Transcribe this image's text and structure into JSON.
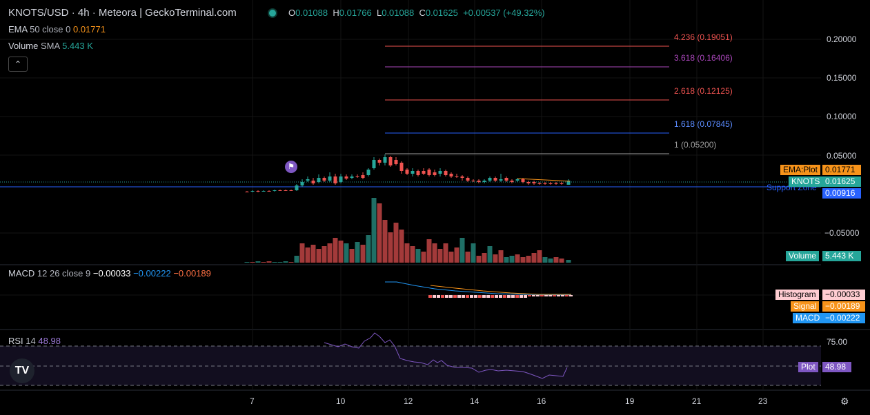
{
  "header": {
    "symbol": "KNOTS/USD",
    "interval": "4h",
    "exchange": "Meteora | GeckoTerminal.com",
    "o_label": "O",
    "o": "0.01088",
    "h_label": "H",
    "h": "0.01766",
    "l_label": "L",
    "l": "0.01088",
    "c_label": "C",
    "c": "0.01625",
    "change": "+0.00537 (+49.32%)"
  },
  "indicators": {
    "ema": {
      "name": "EMA",
      "params": "50 close 0",
      "value": "0.01771"
    },
    "volume": {
      "name": "Volume",
      "params": "SMA",
      "value": "5.443 K"
    },
    "macd": {
      "name": "MACD",
      "params": "12 26 close 9",
      "hist": "−0.00033",
      "macd": "−0.00222",
      "signal": "−0.00189"
    },
    "rsi": {
      "name": "RSI",
      "params": "14",
      "value": "48.98"
    }
  },
  "price_axis": [
    "0.20000",
    "0.15000",
    "0.10000",
    "0.05000",
    "−0.05000"
  ],
  "rsi_axis": [
    "75.00"
  ],
  "time_axis": [
    "7",
    "10",
    "12",
    "14",
    "16",
    "19",
    "21",
    "23"
  ],
  "fib_levels": [
    {
      "label": "4.236 (0.19051)",
      "color": "#ef5350"
    },
    {
      "label": "3.618 (0.16406)",
      "color": "#ab47bc"
    },
    {
      "label": "2.618 (0.12125)",
      "color": "#ef5350"
    },
    {
      "label": "1.618 (0.07845)",
      "color": "#2962ff"
    },
    {
      "label": "1 (0.05200)",
      "color": "#9e9e9e"
    }
  ],
  "support_label": "Support Zone",
  "tags": {
    "ema_label": "EMA:Plot",
    "ema_value": "0.01771",
    "price_label": "KNOTS",
    "price_value": "0.01625",
    "support_value": "0.00916",
    "volume_label": "Volume",
    "volume_value": "5.443 K",
    "hist_label": "Histogram",
    "hist_value": "−0.00033",
    "signal_label": "Signal",
    "signal_value": "−0.00189",
    "macd_label": "MACD",
    "macd_value": "−0.00222",
    "rsi_label": "Plot",
    "rsi_value": "48.98"
  },
  "logo_text": "TV",
  "colors": {
    "up": "#26a69a",
    "down": "#ef5350",
    "ema": "#f7931a",
    "macd": "#2196f3",
    "rsi": "#7e57c2"
  }
}
